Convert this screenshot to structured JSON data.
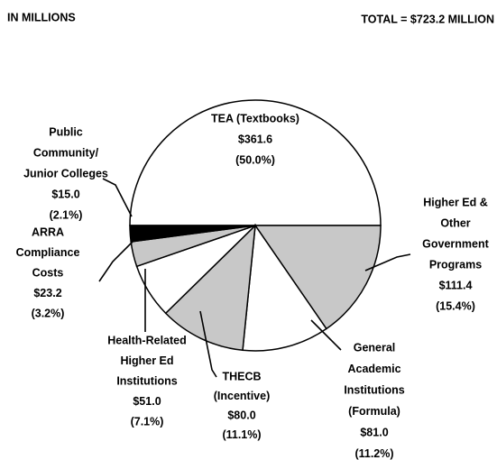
{
  "chart_data": {
    "type": "pie",
    "subtitle": "IN MILLIONS",
    "title": "TOTAL = $723.2 MILLION",
    "categories": [
      [
        "TEA (Textbooks)"
      ],
      [
        "Higher Ed &",
        "Other",
        "Government",
        "Programs"
      ],
      [
        "General",
        "Academic",
        "Institutions",
        "(Formula)"
      ],
      [
        "THECB",
        "(Incentive)"
      ],
      [
        "Health-Related",
        "Higher Ed",
        "Institutions"
      ],
      [
        "ARRA",
        "Compliance",
        "Costs"
      ],
      [
        "Public",
        "Community/",
        "Junior Colleges"
      ]
    ],
    "values": [
      361.6,
      111.4,
      81.0,
      80.0,
      51.0,
      23.2,
      15.0
    ],
    "value_labels": [
      "$361.6",
      "$111.4",
      "$81.0",
      "$80.0",
      "$51.0",
      "$23.2",
      "$15.0"
    ],
    "percent_labels": [
      "(50.0%)",
      "(15.4%)",
      "(11.2%)",
      "(11.1%)",
      "(7.1%)",
      "(3.2%)",
      "(2.1%)"
    ],
    "colors": [
      "#ffffff",
      "#c8c8c8",
      "#ffffff",
      "#c8c8c8",
      "#ffffff",
      "#c8c8c8",
      "#000000"
    ]
  }
}
